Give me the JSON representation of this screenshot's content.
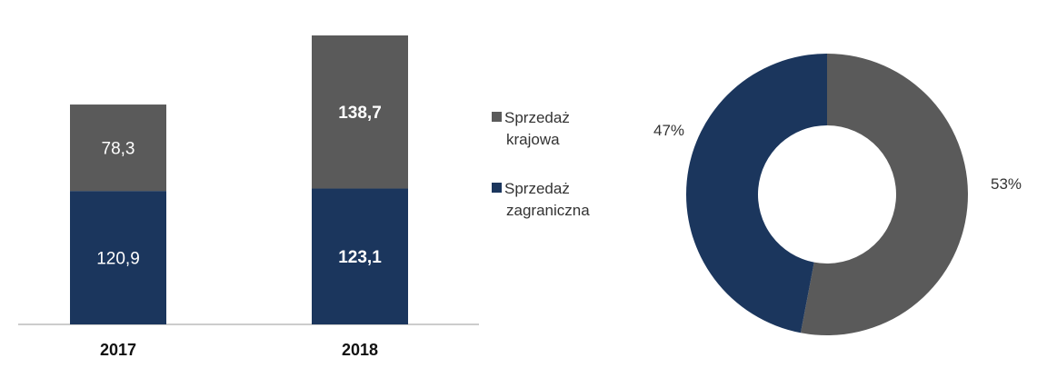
{
  "chart_data": [
    {
      "type": "bar",
      "stacked": true,
      "categories": [
        "2017",
        "2018"
      ],
      "series": [
        {
          "name": "Sprzedaż zagraniczna",
          "values": [
            120.9,
            123.1
          ],
          "color": "#1b365d"
        },
        {
          "name": "Sprzedaż krajowa",
          "values": [
            78.3,
            138.7
          ],
          "color": "#5a5a5a"
        }
      ],
      "data_labels": [
        [
          "120,9",
          "123,1"
        ],
        [
          "78,3",
          "138,7"
        ]
      ],
      "data_label_bold": [
        false,
        true
      ],
      "ylim": [
        0,
        265
      ],
      "grid": false,
      "legend": {
        "position": "right",
        "entries": [
          {
            "lines": [
              "Sprzedaż",
              "krajowa"
            ],
            "color": "#5a5a5a"
          },
          {
            "lines": [
              "Sprzedaż",
              "zagraniczna"
            ],
            "color": "#1b365d"
          }
        ]
      }
    },
    {
      "type": "pie",
      "donut": true,
      "slices": [
        {
          "value": 53,
          "label": "53%",
          "color": "#5a5a5a"
        },
        {
          "value": 47,
          "label": "47%",
          "color": "#1b365d"
        }
      ]
    }
  ]
}
